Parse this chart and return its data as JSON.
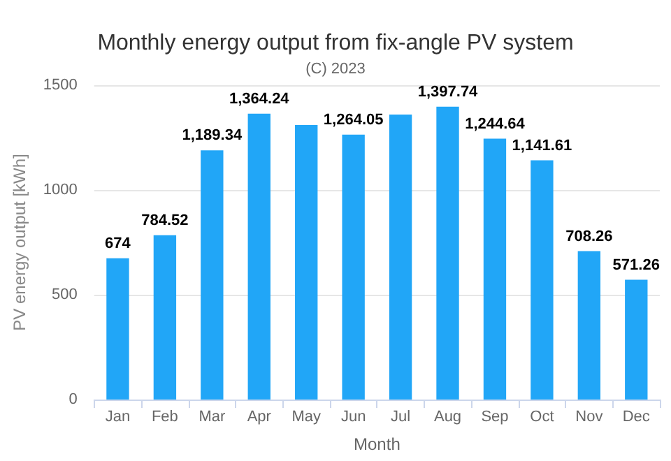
{
  "chart_data": {
    "type": "bar",
    "title": "Monthly energy output from fix-angle PV system",
    "subtitle": "(C) 2023",
    "xlabel": "Month",
    "ylabel": "PV energy output [kWh]",
    "categories": [
      "Jan",
      "Feb",
      "Mar",
      "Apr",
      "May",
      "Jun",
      "Jul",
      "Aug",
      "Sep",
      "Oct",
      "Nov",
      "Dec"
    ],
    "values": [
      674,
      784.52,
      1189.34,
      1364.24,
      1310,
      1264.05,
      1360,
      1397.74,
      1244.64,
      1141.61,
      708.26,
      571.26
    ],
    "value_labels": [
      "674",
      "784.52",
      "1,189.34",
      "1,364.24",
      null,
      "1,264.05",
      null,
      "1,397.74",
      "1,244.64",
      "1,141.61",
      "708.26",
      "571.26"
    ],
    "color": "#21a6f7",
    "ylim": [
      0,
      1500
    ],
    "yticks": [
      0,
      500,
      1000,
      1500
    ],
    "grid": "y"
  }
}
